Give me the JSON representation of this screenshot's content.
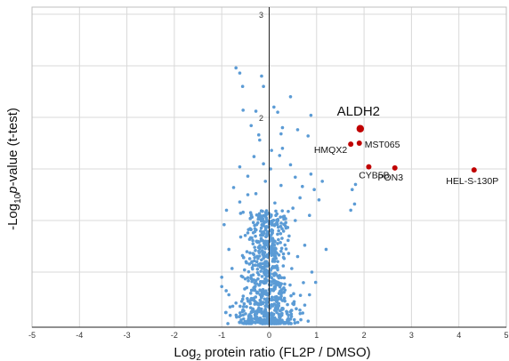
{
  "chart_data": {
    "type": "scatter",
    "xlabel_main": "Log",
    "xlabel_sub": "2",
    "xlabel_rest": " protein ratio (FL2P / DMSO)",
    "ylabel_pre": "-Log",
    "ylabel_sub": "10",
    "ylabel_italic": "p",
    "ylabel_rest": "-value (t-test)",
    "xlim": [
      -5,
      5
    ],
    "ylim": [
      0,
      3
    ],
    "xticks": [
      "-5",
      "-4",
      "-3",
      "-2",
      "-1",
      "0",
      "1",
      "2",
      "3",
      "4",
      "5"
    ],
    "yticks_inline": [
      "2",
      "3"
    ],
    "grid": true,
    "colors": {
      "background_points": "#5b9bd5",
      "highlight_points": "#c00000"
    },
    "highlighted": [
      {
        "label": "ALDH2",
        "x": 1.92,
        "y": 1.89
      },
      {
        "label": "MST065",
        "x": 1.9,
        "y": 1.75
      },
      {
        "label": "HMQX2",
        "x": 1.72,
        "y": 1.74
      },
      {
        "label": "CYB5B",
        "x": 2.1,
        "y": 1.52
      },
      {
        "label": "PON3",
        "x": 2.65,
        "y": 1.51
      },
      {
        "label": "HEL-S-130P",
        "x": 4.32,
        "y": 1.49
      }
    ],
    "background": [
      [
        -0.7,
        2.48
      ],
      [
        -0.62,
        2.43
      ],
      [
        -0.16,
        2.4
      ],
      [
        -0.56,
        2.3
      ],
      [
        0.45,
        2.2
      ],
      [
        -0.12,
        2.3
      ],
      [
        0.1,
        2.1
      ],
      [
        -0.55,
        2.07
      ],
      [
        0.18,
        2.05
      ],
      [
        -0.28,
        2.06
      ],
      [
        0.88,
        2.02
      ],
      [
        -0.38,
        1.92
      ],
      [
        0.28,
        1.9
      ],
      [
        0.6,
        1.88
      ],
      [
        -0.22,
        1.83
      ],
      [
        0.82,
        1.82
      ],
      [
        0.25,
        1.84
      ],
      [
        -0.2,
        1.78
      ],
      [
        0.28,
        1.7
      ],
      [
        0.05,
        1.68
      ],
      [
        -0.32,
        1.62
      ],
      [
        0.22,
        1.63
      ],
      [
        -0.62,
        1.52
      ],
      [
        0.45,
        1.54
      ],
      [
        -0.12,
        1.55
      ],
      [
        0.03,
        1.5
      ],
      [
        -0.45,
        1.43
      ],
      [
        0.55,
        1.42
      ],
      [
        0.88,
        1.45
      ],
      [
        1.12,
        1.38
      ],
      [
        -0.08,
        1.38
      ],
      [
        -0.75,
        1.32
      ],
      [
        0.25,
        1.34
      ],
      [
        0.7,
        1.33
      ],
      [
        -0.28,
        1.26
      ],
      [
        1.82,
        1.35
      ],
      [
        1.75,
        1.3
      ],
      [
        0.95,
        1.3
      ],
      [
        -0.45,
        1.25
      ],
      [
        0.65,
        1.22
      ],
      [
        1.05,
        1.2
      ],
      [
        -0.62,
        1.18
      ],
      [
        0.12,
        1.17
      ],
      [
        1.8,
        1.16
      ],
      [
        -0.9,
        1.1
      ],
      [
        0.5,
        1.12
      ],
      [
        1.72,
        1.1
      ],
      [
        -0.55,
        1.08
      ],
      [
        0.85,
        1.05
      ],
      [
        -0.22,
        1.05
      ],
      [
        -0.95,
        0.96
      ],
      [
        0.35,
        0.98
      ],
      [
        1.2,
        0.72
      ],
      [
        0.75,
        0.76
      ],
      [
        -0.85,
        0.72
      ],
      [
        0.6,
        0.65
      ],
      [
        -1.0,
        0.45
      ],
      [
        0.9,
        0.5
      ],
      [
        -1.0,
        0.36
      ],
      [
        0.98,
        0.4
      ],
      [
        -0.7,
        0.2
      ],
      [
        0.75,
        0.18
      ],
      [
        -0.85,
        0.28
      ],
      [
        0.85,
        0.28
      ],
      [
        -0.45,
        0.88
      ],
      [
        0.42,
        0.85
      ],
      [
        -0.3,
        0.92
      ],
      [
        0.2,
        0.9
      ],
      [
        0.55,
        1.0
      ],
      [
        -0.6,
        0.84
      ]
    ],
    "cloud": {
      "count": 760,
      "center_x": -0.05,
      "sigma_x": 0.32,
      "y_max": 1.1
    }
  }
}
